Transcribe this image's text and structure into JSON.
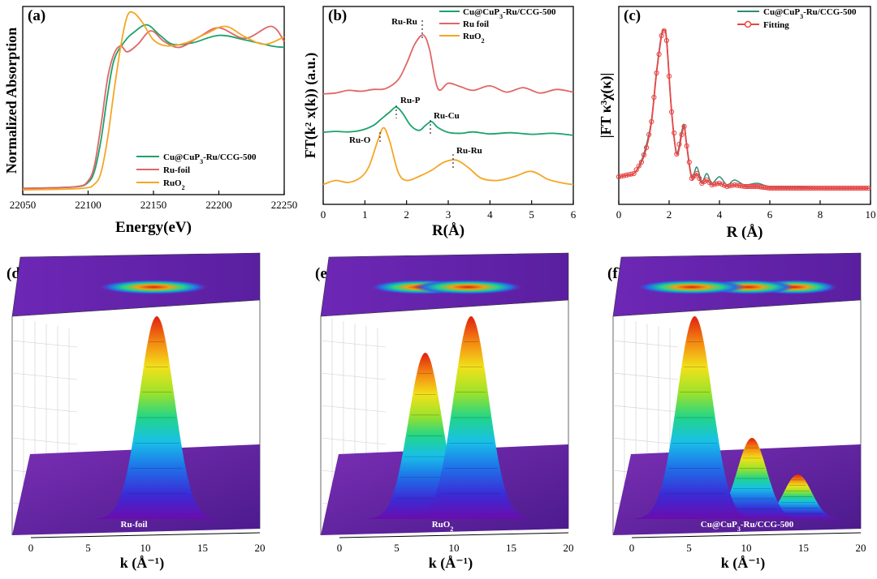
{
  "chart_data": [
    {
      "panel": "(a)",
      "type": "line",
      "xlabel": "Energy(eV)",
      "ylabel": "Normalized Absorption",
      "xlim": [
        22050,
        22250
      ],
      "xticks": [
        "22050",
        "22100",
        "22150",
        "22200",
        "22250"
      ],
      "legend_position": "bottom-right",
      "series": [
        {
          "name": "Cu@CuP3-Ru/CCG-500",
          "color": "#1aa36b",
          "x": [
            22050,
            22090,
            22100,
            22105,
            22110,
            22115,
            22120,
            22128,
            22135,
            22145,
            22155,
            22165,
            22180,
            22200,
            22220,
            22240,
            22250
          ],
          "y": [
            0.02,
            0.03,
            0.06,
            0.14,
            0.35,
            0.65,
            0.88,
            1.0,
            1.06,
            1.11,
            1.04,
            0.98,
            0.99,
            1.04,
            1.01,
            0.97,
            0.96
          ]
        },
        {
          "name": "Ru-foil",
          "color": "#e06666",
          "x": [
            22050,
            22090,
            22100,
            22105,
            22110,
            22115,
            22120,
            22125,
            22130,
            22138,
            22148,
            22158,
            22170,
            22185,
            22200,
            22220,
            22240,
            22250
          ],
          "y": [
            0.02,
            0.03,
            0.07,
            0.18,
            0.45,
            0.76,
            0.92,
            0.97,
            0.93,
            0.98,
            1.07,
            1.0,
            0.96,
            1.03,
            1.09,
            1.02,
            1.1,
            1.0
          ]
        },
        {
          "name": "RuO2",
          "color": "#f5a623",
          "x": [
            22050,
            22095,
            22105,
            22110,
            22115,
            22120,
            22125,
            22130,
            22135,
            22142,
            22150,
            22160,
            22175,
            22190,
            22205,
            22220,
            22235,
            22250
          ],
          "y": [
            0.01,
            0.02,
            0.05,
            0.13,
            0.36,
            0.68,
            0.97,
            1.17,
            1.19,
            1.12,
            1.01,
            0.97,
            0.99,
            1.05,
            1.1,
            1.03,
            0.98,
            1.03
          ]
        }
      ]
    },
    {
      "panel": "(b)",
      "type": "line",
      "xlabel": "R(Å)",
      "ylabel": "FT(k² x(k)) (a.u.)",
      "xlim": [
        0,
        6
      ],
      "xticks": [
        "0",
        "1",
        "2",
        "3",
        "4",
        "5",
        "6"
      ],
      "legend_position": "top-right",
      "annotations": [
        "Ru-Ru",
        "Ru-P",
        "Ru-Cu",
        "Ru-O",
        "Ru-Ru"
      ],
      "series": [
        {
          "name": "Cu@CuP3-Ru/CCG-500",
          "color": "#1aa36b",
          "x": [
            0,
            0.3,
            0.6,
            0.9,
            1.2,
            1.4,
            1.6,
            1.75,
            1.9,
            2.1,
            2.3,
            2.45,
            2.6,
            2.75,
            3.0,
            3.3,
            3.6,
            4.0,
            4.5,
            5.0,
            5.5,
            6.0
          ],
          "y": [
            0.2,
            0.25,
            0.22,
            0.3,
            0.55,
            0.9,
            1.25,
            1.5,
            1.2,
            0.55,
            0.3,
            0.55,
            0.75,
            0.45,
            0.2,
            0.15,
            0.22,
            0.12,
            0.18,
            0.1,
            0.15,
            0.05
          ]
        },
        {
          "name": "Ru foil",
          "color": "#e06666",
          "x": [
            0,
            0.3,
            0.6,
            0.9,
            1.2,
            1.5,
            1.8,
            2.0,
            2.2,
            2.4,
            2.55,
            2.75,
            3.0,
            3.3,
            3.6,
            4.0,
            4.4,
            4.8,
            5.2,
            5.6,
            6.0
          ],
          "y": [
            0.1,
            0.15,
            0.3,
            0.25,
            0.35,
            0.4,
            0.9,
            1.8,
            2.9,
            3.4,
            2.6,
            0.4,
            0.7,
            0.5,
            0.3,
            0.55,
            0.2,
            0.45,
            0.15,
            0.35,
            0.2
          ]
        },
        {
          "name": "RuO2",
          "color": "#f5a623",
          "x": [
            0,
            0.3,
            0.6,
            0.9,
            1.1,
            1.3,
            1.45,
            1.6,
            1.8,
            2.0,
            2.3,
            2.6,
            2.9,
            3.2,
            3.5,
            3.8,
            4.2,
            4.6,
            5.0,
            5.4,
            5.8,
            6.0
          ],
          "y": [
            0.1,
            0.3,
            0.2,
            0.45,
            1.0,
            2.2,
            2.9,
            2.2,
            0.7,
            0.3,
            0.5,
            0.8,
            1.2,
            1.3,
            0.9,
            0.4,
            0.3,
            0.5,
            0.75,
            0.35,
            0.15,
            0.1
          ]
        }
      ]
    },
    {
      "panel": "(c)",
      "type": "line",
      "xlabel": "R (Å)",
      "ylabel": "|FT κ³χ(κ)|",
      "xlim": [
        0,
        10
      ],
      "xticks": [
        "0",
        "2",
        "4",
        "6",
        "8",
        "10"
      ],
      "legend_position": "top-right",
      "series": [
        {
          "name": "Cu@CuP3-Ru/CCG-500",
          "color": "#2e8b74",
          "x": [
            0,
            0.3,
            0.6,
            0.9,
            1.1,
            1.3,
            1.5,
            1.7,
            1.8,
            1.9,
            2.1,
            2.3,
            2.5,
            2.6,
            2.7,
            2.9,
            3.1,
            3.3,
            3.5,
            3.7,
            4.0,
            4.3,
            4.6,
            5.0,
            5.5,
            6.0,
            7.0,
            8.0,
            10.0
          ],
          "y": [
            0.1,
            0.11,
            0.12,
            0.2,
            0.3,
            0.45,
            0.75,
            0.98,
            1.0,
            0.95,
            0.5,
            0.25,
            0.38,
            0.42,
            0.3,
            0.1,
            0.16,
            0.07,
            0.12,
            0.06,
            0.1,
            0.05,
            0.08,
            0.05,
            0.06,
            0.04,
            0.04,
            0.03,
            0.03
          ]
        },
        {
          "name": "Fitting",
          "color": "#e84545",
          "x": [
            0,
            0.3,
            0.6,
            0.9,
            1.1,
            1.3,
            1.5,
            1.7,
            1.8,
            1.9,
            2.1,
            2.3,
            2.5,
            2.6,
            2.7,
            2.9,
            3.1,
            3.3,
            3.5,
            3.7,
            4.0,
            4.3,
            4.6,
            5.0,
            5.5,
            6.0,
            7.0,
            8.0,
            10.0
          ],
          "y": [
            0.1,
            0.11,
            0.12,
            0.19,
            0.28,
            0.44,
            0.74,
            0.97,
            1.0,
            0.94,
            0.5,
            0.24,
            0.36,
            0.41,
            0.29,
            0.09,
            0.12,
            0.06,
            0.08,
            0.05,
            0.06,
            0.04,
            0.05,
            0.04,
            0.04,
            0.03,
            0.03,
            0.03,
            0.03
          ]
        }
      ]
    },
    {
      "panel": "(d)",
      "type": "heatmap",
      "sample_label": "Ru-foil",
      "xlabel": "k (Å⁻¹)",
      "xticks": [
        "0",
        "5",
        "10",
        "15",
        "20"
      ],
      "peaks": [
        {
          "k": 11,
          "relative_height": 1.0
        }
      ]
    },
    {
      "panel": "(e)",
      "type": "heatmap",
      "sample_label": "RuO2",
      "xlabel": "k (Å⁻¹)",
      "xticks": [
        "0",
        "5",
        "10",
        "15",
        "20"
      ],
      "peaks": [
        {
          "k": 7.5,
          "relative_height": 0.82
        },
        {
          "k": 11.5,
          "relative_height": 1.0
        }
      ]
    },
    {
      "panel": "(f)",
      "type": "heatmap",
      "sample_label": "Cu@CuP3-Ru/CCG-500",
      "xlabel": "k (Å⁻¹)",
      "xticks": [
        "0",
        "5",
        "10",
        "15",
        "20"
      ],
      "peaks": [
        {
          "k": 5.5,
          "relative_height": 1.0
        },
        {
          "k": 10.5,
          "relative_height": 0.4
        },
        {
          "k": 14.5,
          "relative_height": 0.22
        }
      ]
    }
  ],
  "colors": {
    "green": "#1aa36b",
    "red": "#e06666",
    "orange": "#f5a623"
  }
}
